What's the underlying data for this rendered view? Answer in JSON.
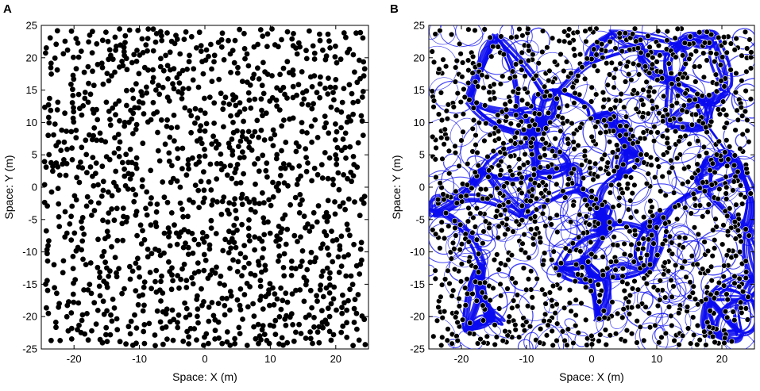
{
  "chart_data": [
    {
      "panel": "A",
      "type": "scatter",
      "title": "",
      "xlabel": "Space: X (m)",
      "ylabel": "Space: Y (m)",
      "xlim": [
        -25,
        25
      ],
      "ylim": [
        -25,
        25
      ],
      "xticks": [
        -20,
        -10,
        0,
        10,
        20
      ],
      "yticks": [
        25,
        20,
        15,
        10,
        5,
        0,
        -5,
        -10,
        -15,
        -20,
        -25
      ],
      "grid": false,
      "legend": "none",
      "point_count": 1300,
      "point_color": "#000000",
      "series": [
        {
          "x": [],
          "y": []
        }
      ]
    },
    {
      "panel": "B",
      "type": "scatter",
      "title": "",
      "xlabel": "Space: X (m)",
      "ylabel": "Space: Y (m)",
      "xlim": [
        -25,
        25
      ],
      "ylim": [
        -25,
        25
      ],
      "xticks": [
        -20,
        -10,
        0,
        10,
        20
      ],
      "yticks": [
        25,
        20,
        15,
        10,
        5,
        0,
        -5,
        -10,
        -15,
        -20,
        -25
      ],
      "grid": false,
      "legend": "none",
      "point_count": 1300,
      "point_color": "#000000",
      "trail_color": "#0a0af0",
      "series": [
        {
          "x": [],
          "y": []
        }
      ]
    }
  ]
}
